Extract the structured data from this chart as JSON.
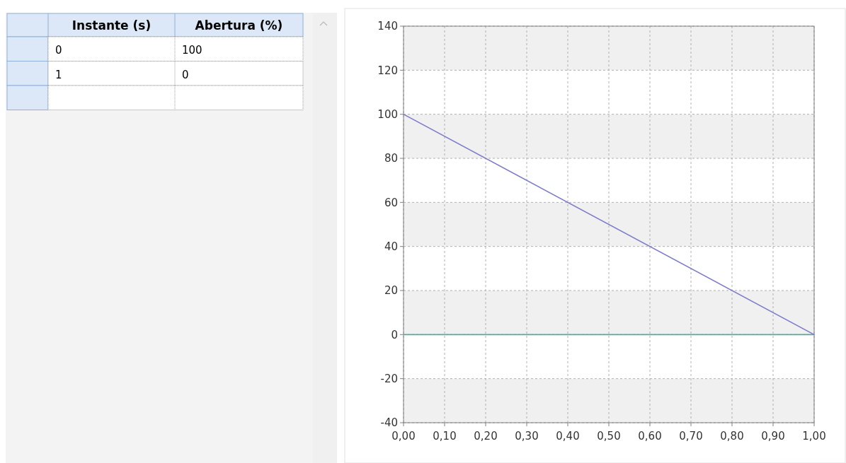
{
  "chart_data": {
    "type": "line",
    "annotations": [
      "Instante (s)",
      "Abertura (%)",
      "0",
      "100",
      "1",
      "0"
    ],
    "series": [
      {
        "color": "#7b7bc9",
        "x": [
          0,
          1
        ],
        "values": [
          100,
          0
        ]
      }
    ],
    "xlim": [
      0,
      1
    ],
    "xticks": [
      {
        "value": 0,
        "label": "0,00"
      },
      {
        "value": 0.1,
        "label": "0,10"
      },
      {
        "value": 0.2,
        "label": "0,20"
      },
      {
        "value": 0.3,
        "label": "0,30"
      },
      {
        "value": 0.4,
        "label": "0,40"
      },
      {
        "value": 0.5,
        "label": "0,50"
      },
      {
        "value": 0.6,
        "label": "0,60"
      },
      {
        "value": 0.7,
        "label": "0,70"
      },
      {
        "value": 0.8,
        "label": "0,80"
      },
      {
        "value": 0.9,
        "label": "0,90"
      },
      {
        "value": 1,
        "label": "1,00"
      }
    ],
    "ylim": [
      -40,
      140
    ],
    "yticks": [
      -40,
      -20,
      0,
      20,
      40,
      60,
      80,
      100,
      120,
      140
    ],
    "grid": true,
    "line_style": "solid",
    "marker": "none",
    "ref_lines": [
      {
        "axis": "y",
        "value": 0,
        "color": "#5fa79a"
      }
    ],
    "bands": [
      {
        "axis": "y",
        "from": 120,
        "to": 140,
        "color": "#f0f0f0"
      },
      {
        "axis": "y",
        "from": 80,
        "to": 100,
        "color": "#f0f0f0"
      },
      {
        "axis": "y",
        "from": 40,
        "to": 60,
        "color": "#f0f0f0"
      },
      {
        "axis": "y",
        "from": 0,
        "to": 20,
        "color": "#f0f0f0"
      },
      {
        "axis": "y",
        "from": -40,
        "to": -20,
        "color": "#f0f0f0"
      }
    ]
  }
}
